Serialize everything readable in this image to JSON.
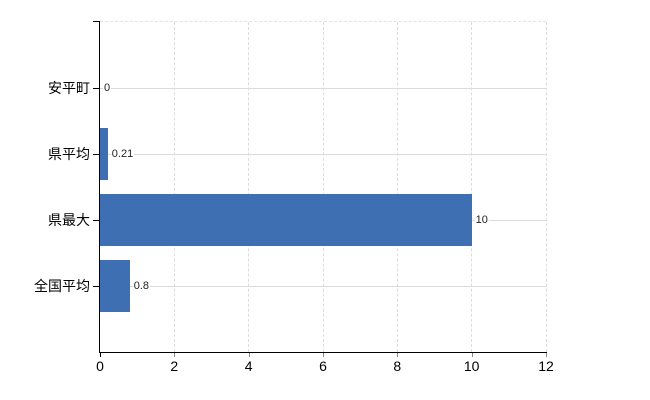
{
  "chart_data": {
    "type": "bar",
    "orientation": "horizontal",
    "title": "",
    "xlabel": "",
    "ylabel": "",
    "categories": [
      "安平町",
      "県平均",
      "県最大",
      "全国平均"
    ],
    "values": [
      0,
      0.21,
      10,
      0.8
    ],
    "value_labels": [
      "0",
      "0.21",
      "10",
      "0.8"
    ],
    "x_ticks": [
      "0",
      "2",
      "4",
      "6",
      "8",
      "10",
      "12"
    ],
    "x_tick_values": [
      0,
      2,
      4,
      6,
      8,
      10,
      12
    ],
    "xlim": [
      0,
      12
    ],
    "grid": true,
    "legend": false,
    "colors": {
      "bar": "#3e6fb2",
      "h_gridline": "#d9ddd9",
      "v_gridline": "#dcdcdc",
      "axis": "#000000",
      "value_text": "#222222",
      "category_text": "#000000"
    }
  }
}
